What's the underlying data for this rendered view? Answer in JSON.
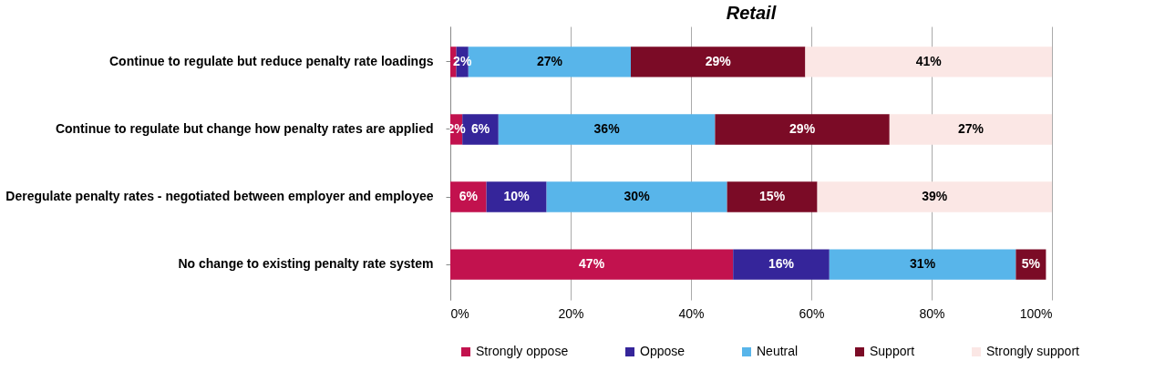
{
  "chart_data": {
    "type": "bar",
    "orientation": "horizontal",
    "stacked": true,
    "title": "Retail",
    "categories": [
      "Continue to regulate but reduce penalty rate loadings",
      "Continue to regulate but change how penalty rates are applied",
      "Deregulate penalty rates - negotiated between employer and employee",
      "No change to existing penalty rate system"
    ],
    "series": [
      {
        "name": "Strongly oppose",
        "color": "#c2124e",
        "values": [
          1,
          2,
          6,
          47
        ],
        "value_labels": [
          null,
          "2%",
          "6%",
          "47%"
        ]
      },
      {
        "name": "Oppose",
        "color": "#35259a",
        "values": [
          2,
          6,
          10,
          16
        ],
        "value_labels": [
          "2%",
          "6%",
          "10%",
          "16%"
        ]
      },
      {
        "name": "Neutral",
        "color": "#58b5ea",
        "values": [
          27,
          36,
          30,
          31
        ],
        "value_labels": [
          "27%",
          "36%",
          "30%",
          "31%"
        ]
      },
      {
        "name": "Support",
        "color": "#7b0b26",
        "values": [
          29,
          29,
          15,
          5
        ],
        "value_labels": [
          "29%",
          "29%",
          "15%",
          "5%"
        ]
      },
      {
        "name": "Strongly support",
        "color": "#fbe7e5",
        "values": [
          41,
          27,
          39,
          null
        ],
        "value_labels": [
          "41%",
          "27%",
          "39%",
          null
        ]
      }
    ],
    "xlim": [
      0,
      100
    ],
    "xticks": [
      {
        "value": 0,
        "label": "0%"
      },
      {
        "value": 20,
        "label": "20%"
      },
      {
        "value": 40,
        "label": "40%"
      },
      {
        "value": 60,
        "label": "60%"
      },
      {
        "value": 80,
        "label": "80%"
      },
      {
        "value": 100,
        "label": "100%"
      }
    ],
    "grid": "x",
    "legend": "bottom"
  }
}
